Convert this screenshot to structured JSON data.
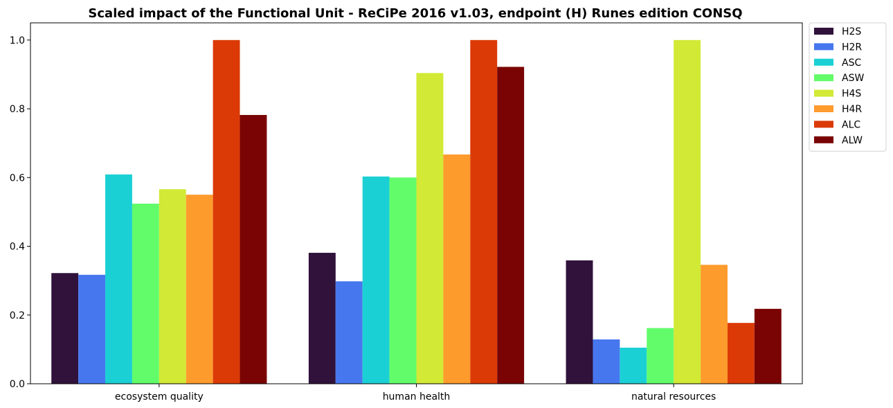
{
  "chart_data": {
    "type": "bar",
    "title": "Scaled impact of the Functional Unit - ReCiPe 2016 v1.03, endpoint (H) Runes edition CONSQ",
    "xlabel": "",
    "ylabel": "",
    "categories": [
      "ecosystem quality",
      "human health",
      "natural resources"
    ],
    "ylim": [
      0,
      1.05
    ],
    "yticks": [
      0.0,
      0.2,
      0.4,
      0.6,
      0.8,
      1.0
    ],
    "ytick_labels": [
      "0.0",
      "0.2",
      "0.4",
      "0.6",
      "0.8",
      "1.0"
    ],
    "grid": false,
    "legend_placement": "outside-top-right",
    "series": [
      {
        "name": "H2S",
        "color": "#30123b",
        "values": [
          0.322,
          0.381,
          0.359
        ]
      },
      {
        "name": "H2R",
        "color": "#4777ef",
        "values": [
          0.317,
          0.298,
          0.129
        ]
      },
      {
        "name": "ASC",
        "color": "#1bd0d5",
        "values": [
          0.609,
          0.603,
          0.105
        ]
      },
      {
        "name": "ASW",
        "color": "#62fc6b",
        "values": [
          0.524,
          0.6,
          0.162
        ]
      },
      {
        "name": "H4S",
        "color": "#d2e935",
        "values": [
          0.566,
          0.904,
          1.0
        ]
      },
      {
        "name": "H4R",
        "color": "#fe9b2d",
        "values": [
          0.55,
          0.667,
          0.346
        ]
      },
      {
        "name": "ALC",
        "color": "#db3a07",
        "values": [
          1.0,
          1.0,
          0.177
        ]
      },
      {
        "name": "ALW",
        "color": "#7a0403",
        "values": [
          0.782,
          0.922,
          0.218
        ]
      }
    ]
  }
}
